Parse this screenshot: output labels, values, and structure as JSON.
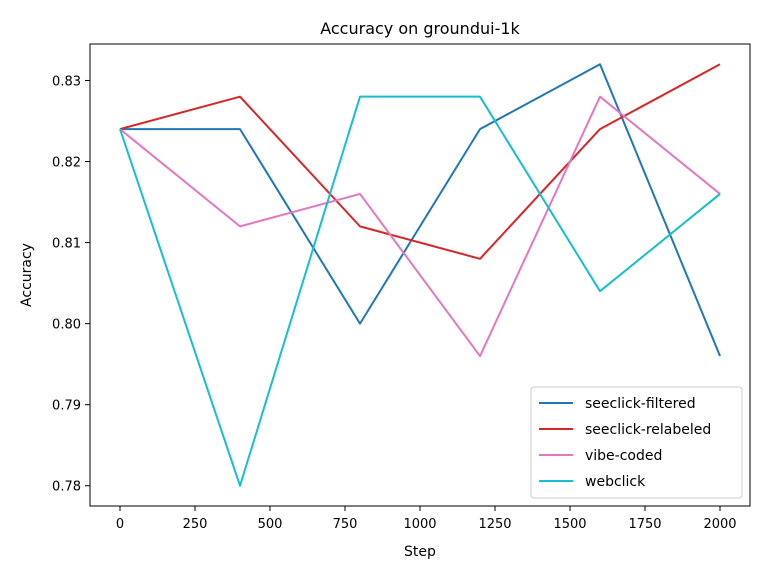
{
  "chart_data": {
    "type": "line",
    "title": "Accuracy on groundui-1k",
    "xlabel": "Step",
    "ylabel": "Accuracy",
    "x": [
      0,
      400,
      800,
      1200,
      1600,
      2000
    ],
    "xlim": [
      -100,
      2100
    ],
    "ylim": [
      0.7775,
      0.8345
    ],
    "xticks": [
      0,
      250,
      500,
      750,
      1000,
      1250,
      1500,
      1750,
      2000
    ],
    "yticks": [
      0.78,
      0.79,
      0.8,
      0.81,
      0.82,
      0.83
    ],
    "xtick_labels": [
      "0",
      "250",
      "500",
      "750",
      "1000",
      "1250",
      "1500",
      "1750",
      "2000"
    ],
    "ytick_labels": [
      "0.78",
      "0.79",
      "0.80",
      "0.81",
      "0.82",
      "0.83"
    ],
    "grid": false,
    "legend_position": "lower-right",
    "series": [
      {
        "name": "seeclick-filtered",
        "color": "#1f77b4",
        "values": [
          0.824,
          0.824,
          0.8,
          0.824,
          0.832,
          0.796
        ]
      },
      {
        "name": "seeclick-relabeled",
        "color": "#d62728",
        "values": [
          0.824,
          0.828,
          0.812,
          0.808,
          0.824,
          0.832
        ]
      },
      {
        "name": "vibe-coded",
        "color": "#e377c2",
        "values": [
          0.824,
          0.812,
          0.816,
          0.796,
          0.828,
          0.816
        ]
      },
      {
        "name": "webclick",
        "color": "#17becf",
        "values": [
          0.824,
          0.78,
          0.828,
          0.828,
          0.804,
          0.816
        ]
      }
    ]
  }
}
